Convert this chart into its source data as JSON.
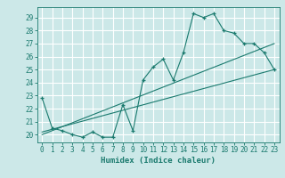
{
  "title": "",
  "xlabel": "Humidex (Indice chaleur)",
  "bg_color": "#cce8e8",
  "grid_color": "#ffffff",
  "line_color": "#1a7a6e",
  "xlim": [
    -0.5,
    23.5
  ],
  "ylim": [
    19.4,
    29.8
  ],
  "xticks": [
    0,
    1,
    2,
    3,
    4,
    5,
    6,
    7,
    8,
    9,
    10,
    11,
    12,
    13,
    14,
    15,
    16,
    17,
    18,
    19,
    20,
    21,
    22,
    23
  ],
  "yticks": [
    20,
    21,
    22,
    23,
    24,
    25,
    26,
    27,
    28,
    29
  ],
  "curve1_x": [
    0,
    1,
    2,
    3,
    4,
    5,
    6,
    7,
    8,
    9,
    10,
    11,
    12,
    13,
    14,
    15,
    16,
    17,
    18,
    19,
    20,
    21,
    22,
    23
  ],
  "curve1_y": [
    22.8,
    20.5,
    20.3,
    20.0,
    19.8,
    20.2,
    19.8,
    19.8,
    22.3,
    20.3,
    24.2,
    25.2,
    25.8,
    24.2,
    26.3,
    29.3,
    29.0,
    29.3,
    28.0,
    27.8,
    27.0,
    27.0,
    26.3,
    25.0
  ],
  "line1_x": [
    0,
    23
  ],
  "line1_y": [
    20.2,
    25.0
  ],
  "line2_x": [
    0,
    23
  ],
  "line2_y": [
    20.0,
    27.0
  ]
}
